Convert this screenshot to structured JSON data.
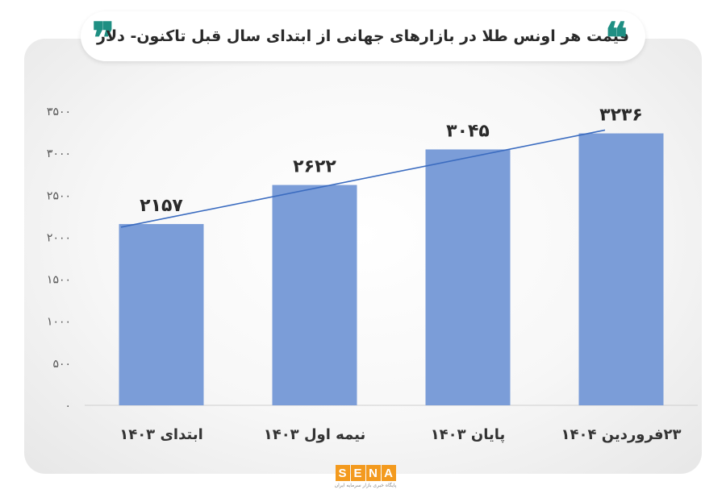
{
  "title": "قیمت هر اونس طلا در بازارهای جهانی از ابتدای سال قبل تاکنون- دلار",
  "quote_open": "❞",
  "quote_close": "❝",
  "colors": {
    "bar": "#7b9dd8",
    "trendline": "#3b6cc0",
    "accent": "#1f8f83",
    "logo": "#f39a1e"
  },
  "logo": {
    "letters": [
      "S",
      "E",
      "N",
      "A"
    ],
    "subtitle": "پایگاه خبری بازار سرمایه ایران"
  },
  "chart_data": {
    "type": "bar",
    "title": "قیمت هر اونس طلا در بازارهای جهانی از ابتدای سال قبل تاکنون- دلار",
    "categories": [
      "ابتدای ۱۴۰۳",
      "نیمه اول ۱۴۰۳",
      "پایان ۱۴۰۳",
      "۲۳فروردین ۱۴۰۴"
    ],
    "values": [
      2157,
      2622,
      3045,
      3236
    ],
    "value_labels": [
      "۲۱۵۷",
      "۲۶۲۲",
      "۳۰۴۵",
      "۳۲۳۶"
    ],
    "ylim": [
      0,
      3500
    ],
    "yticks": [
      0,
      500,
      1000,
      1500,
      2000,
      2500,
      3000,
      3500
    ],
    "ytick_labels": [
      "۰",
      "۵۰۰",
      "۱۰۰۰",
      "۱۵۰۰",
      "۲۰۰۰",
      "۲۵۰۰",
      "۳۰۰۰",
      "۳۵۰۰"
    ],
    "trendline": true,
    "grid": false,
    "legend": false
  }
}
